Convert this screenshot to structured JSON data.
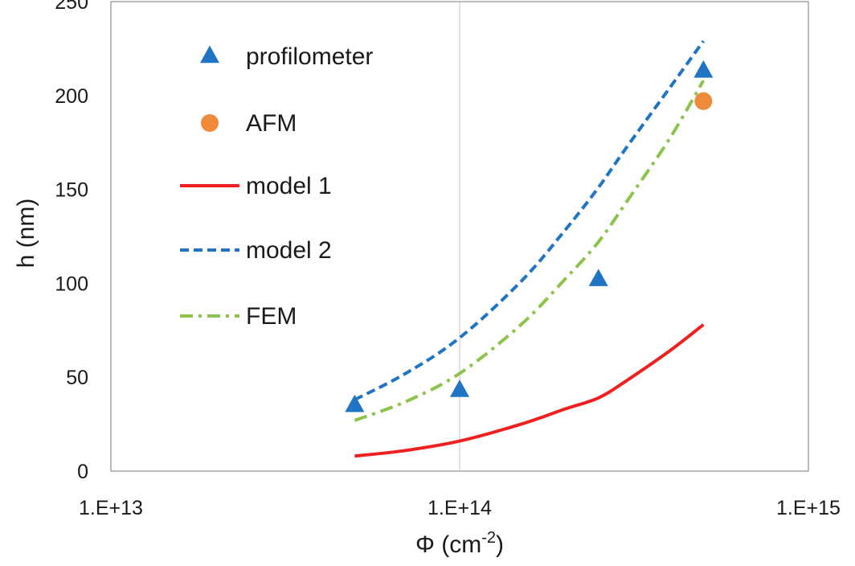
{
  "chart_data": {
    "type": "scatter",
    "xscale": "log",
    "xlabel": "Φ (cm",
    "xlabel_exp": "-2",
    "xlabel_close": ")",
    "ylabel": "h (nm)",
    "xlim": [
      10000000000000.0,
      1000000000000000.0
    ],
    "ylim": [
      0,
      250
    ],
    "xticks": [
      10000000000000.0,
      100000000000000.0,
      1000000000000000.0
    ],
    "xtick_labels": [
      "1.E+13",
      "1.E+14",
      "1.E+15"
    ],
    "yticks": [
      0,
      50,
      100,
      150,
      200,
      250
    ],
    "ytick_labels": [
      "0",
      "50",
      "100",
      "150",
      "200",
      "250"
    ],
    "grid": "vertical",
    "legend_position": "top-left",
    "series": [
      {
        "name": "profilometer",
        "kind": "markers",
        "marker": "triangle",
        "color": "#1f74c4",
        "x": [
          50000000000000.0,
          100000000000000.0,
          250000000000000.0,
          500000000000000.0
        ],
        "y": [
          35,
          43,
          102,
          213
        ]
      },
      {
        "name": "AFM",
        "kind": "markers",
        "marker": "circle",
        "color": "#ee8a3a",
        "x": [
          500000000000000.0
        ],
        "y": [
          197
        ]
      },
      {
        "name": "model 1",
        "kind": "line",
        "dash": "solid",
        "color": "#ef2020",
        "x": [
          50000000000000.0,
          70000000000000.0,
          100000000000000.0,
          150000000000000.0,
          200000000000000.0,
          250000000000000.0,
          300000000000000.0,
          400000000000000.0,
          500000000000000.0
        ],
        "y": [
          8,
          11,
          16,
          25,
          33,
          39,
          48,
          64,
          78
        ]
      },
      {
        "name": "model 2",
        "kind": "line",
        "dash": "dash",
        "color": "#1f74c4",
        "x": [
          50000000000000.0,
          70000000000000.0,
          100000000000000.0,
          150000000000000.0,
          200000000000000.0,
          250000000000000.0,
          300000000000000.0,
          400000000000000.0,
          500000000000000.0
        ],
        "y": [
          38,
          52,
          71,
          101,
          128,
          151,
          172,
          204,
          229
        ]
      },
      {
        "name": "FEM",
        "kind": "line",
        "dash": "dashdot",
        "color": "#8cc34a",
        "x": [
          50000000000000.0,
          70000000000000.0,
          100000000000000.0,
          150000000000000.0,
          200000000000000.0,
          250000000000000.0,
          300000000000000.0,
          400000000000000.0,
          500000000000000.0
        ],
        "y": [
          27,
          37,
          52,
          78,
          102,
          122,
          143,
          177,
          208
        ]
      }
    ]
  }
}
